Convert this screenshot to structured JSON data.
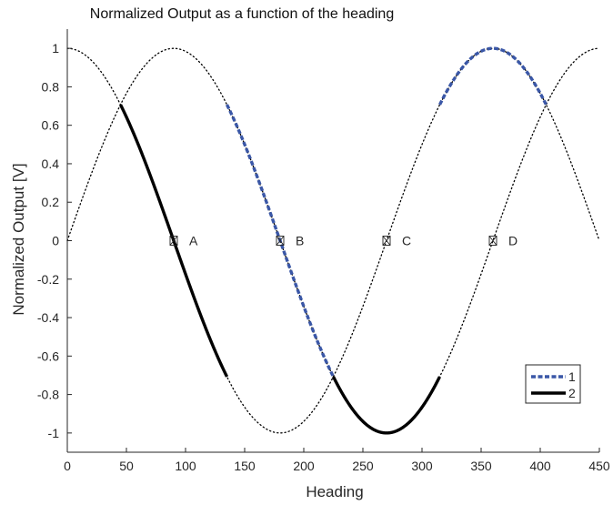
{
  "chart_data": {
    "type": "line",
    "title": "Normalized Output as a function of the heading",
    "xlabel": "Heading",
    "ylabel": "Normalized Output [V]",
    "xlim": [
      0,
      450
    ],
    "ylim": [
      -1.1,
      1.1
    ],
    "xticks": [
      "0",
      "50",
      "100",
      "150",
      "200",
      "250",
      "300",
      "350",
      "400",
      "450"
    ],
    "yticks": [
      "-1",
      "-0.8",
      "-0.6",
      "-0.4",
      "-0.2",
      "0",
      "0.2",
      "0.4",
      "0.6",
      "0.8",
      "1"
    ],
    "grid": false,
    "legend_position": "bottom-right",
    "reference_curves": [
      {
        "function": "sin(heading)",
        "x_range": [
          0,
          450
        ],
        "style": "dotted",
        "color": "#000000"
      },
      {
        "function": "cos(heading)",
        "x_range": [
          0,
          450
        ],
        "style": "dotted",
        "color": "#000000"
      }
    ],
    "series": [
      {
        "name": "1",
        "color": "#3a57a7",
        "style": "dashed",
        "segments": [
          {
            "function": "sin(heading)",
            "x_range": [
              135,
              225
            ]
          },
          {
            "function": "cos(heading)",
            "x_range": [
              315,
              405
            ]
          }
        ]
      },
      {
        "name": "2",
        "color": "#000000",
        "style": "solid",
        "segments": [
          {
            "function": "cos(heading)",
            "x_range": [
              45,
              135
            ]
          },
          {
            "function": "sin(heading)",
            "x_range": [
              225,
              315
            ]
          }
        ]
      }
    ],
    "annotations": [
      {
        "label": "A",
        "x": 90,
        "y": 0
      },
      {
        "label": "B",
        "x": 180,
        "y": 0
      },
      {
        "label": "C",
        "x": 270,
        "y": 0
      },
      {
        "label": "D",
        "x": 360,
        "y": 0
      }
    ]
  }
}
